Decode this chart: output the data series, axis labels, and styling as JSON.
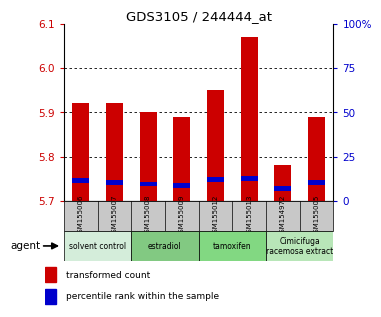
{
  "title": "GDS3105 / 244444_at",
  "samples": [
    "GSM155006",
    "GSM155007",
    "GSM155008",
    "GSM155009",
    "GSM155012",
    "GSM155013",
    "GSM154972",
    "GSM155005"
  ],
  "red_values": [
    5.92,
    5.92,
    5.9,
    5.89,
    5.95,
    6.07,
    5.78,
    5.89
  ],
  "blue_values": [
    5.745,
    5.742,
    5.738,
    5.735,
    5.748,
    5.75,
    5.728,
    5.742
  ],
  "bar_bottom": 5.7,
  "ylim": [
    5.7,
    6.1
  ],
  "yticks_left": [
    5.7,
    5.8,
    5.9,
    6.0,
    6.1
  ],
  "yticks_right": [
    0,
    25,
    50,
    75,
    100
  ],
  "ytick_labels_right": [
    "0",
    "25",
    "50",
    "75",
    "100%"
  ],
  "groups": [
    {
      "label": "solvent control",
      "start": 0,
      "end": 2,
      "color": "#d4edda"
    },
    {
      "label": "estradiol",
      "start": 2,
      "end": 4,
      "color": "#82c982"
    },
    {
      "label": "tamoxifen",
      "start": 4,
      "end": 6,
      "color": "#82d882"
    },
    {
      "label": "Cimicifuga\nracemosa extract",
      "start": 6,
      "end": 8,
      "color": "#b8e6b8"
    }
  ],
  "agent_label": "agent",
  "legend_red": "transformed count",
  "legend_blue": "percentile rank within the sample",
  "bar_color_red": "#cc0000",
  "bar_color_blue": "#0000cc",
  "bar_width": 0.5,
  "bg_color": "#ffffff",
  "plot_bg": "#ffffff",
  "left_tick_color": "#cc0000",
  "right_tick_color": "#0000cc",
  "sample_bg": "#c8c8c8"
}
